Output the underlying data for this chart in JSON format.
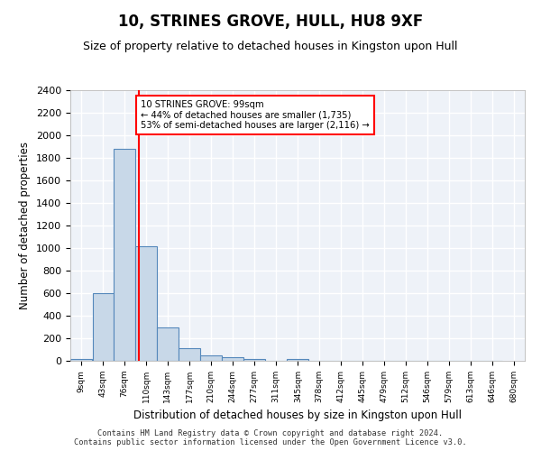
{
  "title": "10, STRINES GROVE, HULL, HU8 9XF",
  "subtitle": "Size of property relative to detached houses in Kingston upon Hull",
  "xlabel": "Distribution of detached houses by size in Kingston upon Hull",
  "ylabel": "Number of detached properties",
  "bin_edges": [
    9,
    43,
    76,
    110,
    143,
    177,
    210,
    244,
    277,
    311,
    345,
    378,
    412,
    445,
    479,
    512,
    546,
    579,
    613,
    646,
    680
  ],
  "bar_values": [
    20,
    600,
    1880,
    1020,
    295,
    110,
    47,
    35,
    20,
    0,
    20,
    0,
    0,
    0,
    0,
    0,
    0,
    0,
    0,
    0
  ],
  "bar_color": "#c8d8e8",
  "bar_edge_color": "#5588bb",
  "vline_position": 99,
  "vline_color": "red",
  "annotation_text": "10 STRINES GROVE: 99sqm\n← 44% of detached houses are smaller (1,735)\n53% of semi-detached houses are larger (2,116) →",
  "annotation_box_color": "white",
  "annotation_box_edge_color": "red",
  "ylim": [
    0,
    2400
  ],
  "yticks": [
    0,
    200,
    400,
    600,
    800,
    1000,
    1200,
    1400,
    1600,
    1800,
    2000,
    2200,
    2400
  ],
  "footer_text": "Contains HM Land Registry data © Crown copyright and database right 2024.\nContains public sector information licensed under the Open Government Licence v3.0.",
  "background_color": "#eef2f8",
  "grid_color": "#ffffff"
}
